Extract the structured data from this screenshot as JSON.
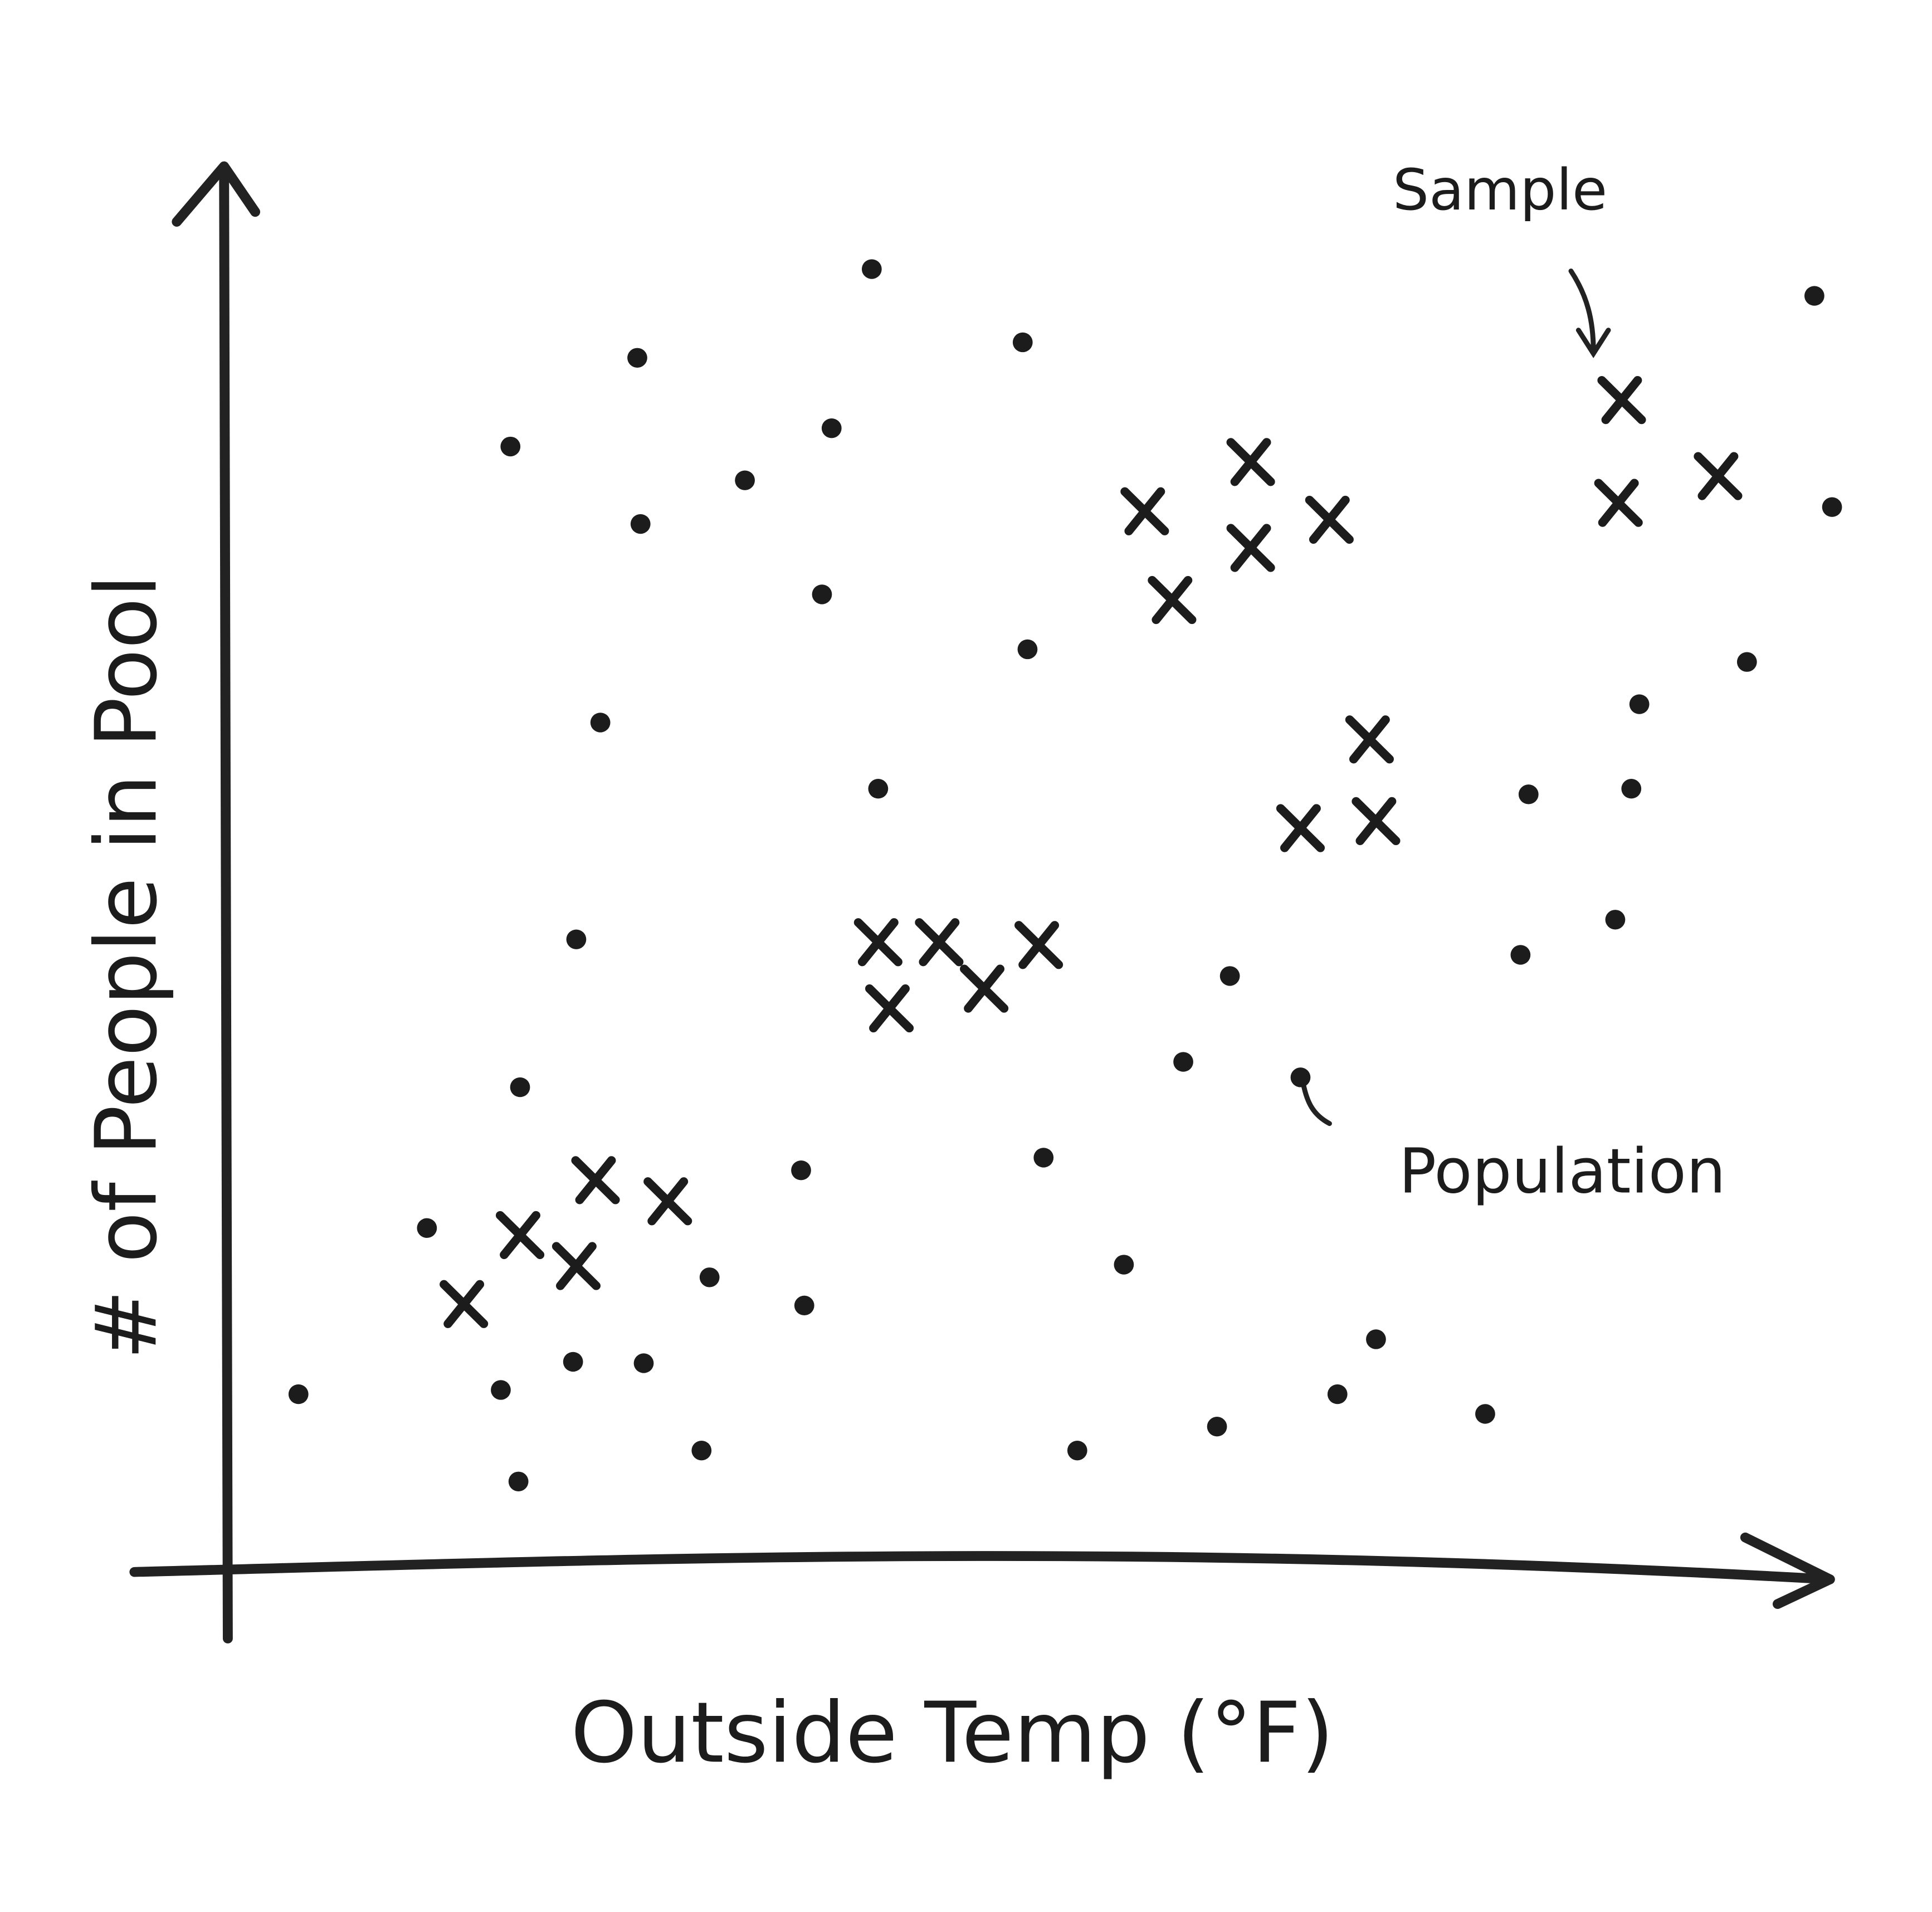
{
  "chart_data": {
    "type": "scatter",
    "x_label": "Outside Temp (°F)",
    "y_label": "# of People in Pool",
    "xlim": [
      0,
      100
    ],
    "ylim": [
      0,
      100
    ],
    "series": [
      {
        "name": "Population",
        "color": "#1c1c1c",
        "marker": "dot",
        "x": [
          40.1,
          25.5,
          49.5,
          98.8,
          17.6,
          37.6,
          32.2,
          25.7,
          37.0,
          49.8,
          99.9,
          94.6,
          23.2,
          87.9,
          40.5,
          81.0,
          87.4,
          86.4,
          21.7,
          80.5,
          62.4,
          59.5,
          66.8,
          18.2,
          50.8,
          35.7,
          12.4,
          55.8,
          30.0,
          35.9,
          71.5,
          21.5,
          25.9,
          17.0,
          4.4,
          69.1,
          78.3,
          61.6,
          52.9,
          29.5,
          18.1
        ],
        "y": [
          92.7,
          86.4,
          87.5,
          90.8,
          80.1,
          81.4,
          77.7,
          74.6,
          69.6,
          65.7,
          75.8,
          64.8,
          60.5,
          61.8,
          55.8,
          55.4,
          55.8,
          46.5,
          45.1,
          44.0,
          42.5,
          36.4,
          35.3,
          34.6,
          29.6,
          28.7,
          24.6,
          22.0,
          21.1,
          19.1,
          16.7,
          15.1,
          15.0,
          13.1,
          12.8,
          12.8,
          11.4,
          10.5,
          8.8,
          8.8,
          6.6
        ]
      },
      {
        "name": "Sample",
        "color": "#1c1c1c",
        "marker": "x",
        "x": [
          86.8,
          86.6,
          92.8,
          63.7,
          57.1,
          63.7,
          68.6,
          58.8,
          71.1,
          66.8,
          71.5,
          40.5,
          44.3,
          50.5,
          41.2,
          47.1,
          22.9,
          27.4,
          18.2,
          21.7,
          14.7
        ],
        "y": [
          83.4,
          76.1,
          78.0,
          79.0,
          75.5,
          72.9,
          74.9,
          69.2,
          59.3,
          53.0,
          53.5,
          44.9,
          44.9,
          44.7,
          40.2,
          41.6,
          28.0,
          26.5,
          24.1,
          21.9,
          19.2
        ]
      }
    ]
  }
}
